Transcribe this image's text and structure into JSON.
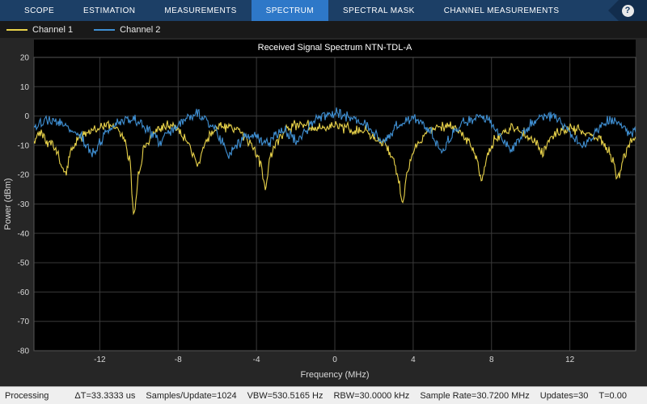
{
  "colors": {
    "tabbar-bg": "#1c3f66",
    "tab-active-bg": "#2e78c8",
    "help-bg": "#122d4d",
    "legend-bg": "#191919",
    "body-bg": "#262626",
    "axes-bg": "#000000",
    "grid": "#3a3a3a",
    "axes-border": "#555555",
    "tick-text": "#d9d9d9",
    "title-text": "#ffffff",
    "status-bg": "#efefef",
    "status-text": "#222222",
    "channel1": "#e8d24a",
    "channel2": "#3f8fd2"
  },
  "tabs": [
    {
      "label": "SCOPE",
      "active": false
    },
    {
      "label": "ESTIMATION",
      "active": false
    },
    {
      "label": "MEASUREMENTS",
      "active": false
    },
    {
      "label": "SPECTRUM",
      "active": true
    },
    {
      "label": "SPECTRAL MASK",
      "active": false
    },
    {
      "label": "CHANNEL MEASUREMENTS",
      "active": false
    }
  ],
  "help_label": "?",
  "legend": [
    {
      "label": "Channel 1",
      "color": "#e8d24a"
    },
    {
      "label": "Channel 2",
      "color": "#3f8fd2"
    }
  ],
  "status": {
    "state": "Processing",
    "metrics": [
      "ΔT=33.3333 us",
      "Samples/Update=1024",
      "VBW=530.5165 Hz",
      "RBW=30.0000 kHz",
      "Sample Rate=30.7200 MHz",
      "Updates=30",
      "T=0.00"
    ]
  },
  "chart_data": {
    "type": "line",
    "title": "Received Signal Spectrum NTN-TDL-A",
    "xlabel": "Frequency (MHz)",
    "ylabel": "Power (dBm)",
    "xlim": [
      -15.36,
      15.36
    ],
    "ylim": [
      -80,
      20
    ],
    "xticks": [
      -12,
      -8,
      -4,
      0,
      4,
      8,
      12
    ],
    "yticks": [
      20,
      10,
      0,
      -10,
      -20,
      -30,
      -40,
      -50,
      -60,
      -70,
      -80
    ],
    "grid": true,
    "legend_position": "top-left",
    "noise_db": 1.3,
    "series": [
      {
        "name": "Channel 1",
        "color": "#e8d24a",
        "points": [
          [
            -15.36,
            -8
          ],
          [
            -15.0,
            -6
          ],
          [
            -14.6,
            -9
          ],
          [
            -14.2,
            -12
          ],
          [
            -13.8,
            -20
          ],
          [
            -13.4,
            -11
          ],
          [
            -13.0,
            -7
          ],
          [
            -12.6,
            -5
          ],
          [
            -12.2,
            -4
          ],
          [
            -11.7,
            -3
          ],
          [
            -11.2,
            -4
          ],
          [
            -10.8,
            -7
          ],
          [
            -10.5,
            -14
          ],
          [
            -10.25,
            -33
          ],
          [
            -10.0,
            -20
          ],
          [
            -9.7,
            -10
          ],
          [
            -9.3,
            -6
          ],
          [
            -8.9,
            -4
          ],
          [
            -8.5,
            -3
          ],
          [
            -8.1,
            -4
          ],
          [
            -7.7,
            -7
          ],
          [
            -7.3,
            -12
          ],
          [
            -7.0,
            -18
          ],
          [
            -6.7,
            -11
          ],
          [
            -6.3,
            -6
          ],
          [
            -5.9,
            -4
          ],
          [
            -5.4,
            -4
          ],
          [
            -5.0,
            -5
          ],
          [
            -4.6,
            -7
          ],
          [
            -4.2,
            -10
          ],
          [
            -3.8,
            -16
          ],
          [
            -3.55,
            -24
          ],
          [
            -3.3,
            -14
          ],
          [
            -2.9,
            -8
          ],
          [
            -2.5,
            -5
          ],
          [
            -2.0,
            -3
          ],
          [
            -1.5,
            -3
          ],
          [
            -1.0,
            -4
          ],
          [
            -0.5,
            -4
          ],
          [
            0.0,
            -3
          ],
          [
            0.5,
            -4
          ],
          [
            1.0,
            -5
          ],
          [
            1.5,
            -5
          ],
          [
            2.0,
            -7
          ],
          [
            2.5,
            -9
          ],
          [
            2.9,
            -13
          ],
          [
            3.2,
            -20
          ],
          [
            3.45,
            -30
          ],
          [
            3.7,
            -19
          ],
          [
            4.0,
            -12
          ],
          [
            4.4,
            -8
          ],
          [
            4.8,
            -5
          ],
          [
            5.3,
            -4
          ],
          [
            5.8,
            -3
          ],
          [
            6.3,
            -5
          ],
          [
            6.8,
            -8
          ],
          [
            7.2,
            -13
          ],
          [
            7.5,
            -21
          ],
          [
            7.8,
            -13
          ],
          [
            8.2,
            -8
          ],
          [
            8.7,
            -5
          ],
          [
            9.2,
            -4
          ],
          [
            9.7,
            -6
          ],
          [
            10.2,
            -9
          ],
          [
            10.6,
            -12
          ],
          [
            11.0,
            -8
          ],
          [
            11.5,
            -5
          ],
          [
            12.0,
            -4
          ],
          [
            12.5,
            -5
          ],
          [
            13.0,
            -6
          ],
          [
            13.5,
            -8
          ],
          [
            14.0,
            -12
          ],
          [
            14.45,
            -21
          ],
          [
            14.8,
            -13
          ],
          [
            15.1,
            -9
          ],
          [
            15.36,
            -7
          ]
        ]
      },
      {
        "name": "Channel 2",
        "color": "#3f8fd2",
        "points": [
          [
            -15.36,
            -4
          ],
          [
            -15.0,
            -2
          ],
          [
            -14.6,
            -1
          ],
          [
            -14.2,
            -2
          ],
          [
            -13.8,
            -3
          ],
          [
            -13.4,
            -5
          ],
          [
            -13.0,
            -7
          ],
          [
            -12.6,
            -11
          ],
          [
            -12.3,
            -13
          ],
          [
            -12.0,
            -9
          ],
          [
            -11.6,
            -5
          ],
          [
            -11.2,
            -3
          ],
          [
            -10.8,
            -1
          ],
          [
            -10.4,
            -1
          ],
          [
            -10.0,
            -2
          ],
          [
            -9.6,
            -4
          ],
          [
            -9.2,
            -7
          ],
          [
            -8.9,
            -9
          ],
          [
            -8.6,
            -6
          ],
          [
            -8.2,
            -4
          ],
          [
            -7.8,
            -2
          ],
          [
            -7.4,
            0
          ],
          [
            -7.0,
            1
          ],
          [
            -6.6,
            -1
          ],
          [
            -6.2,
            -4
          ],
          [
            -5.8,
            -8
          ],
          [
            -5.4,
            -13
          ],
          [
            -5.0,
            -10
          ],
          [
            -4.6,
            -7
          ],
          [
            -4.2,
            -6
          ],
          [
            -3.8,
            -8
          ],
          [
            -3.4,
            -9
          ],
          [
            -3.0,
            -6
          ],
          [
            -2.6,
            -5
          ],
          [
            -2.2,
            -7
          ],
          [
            -1.9,
            -9
          ],
          [
            -1.5,
            -5
          ],
          [
            -1.1,
            -2
          ],
          [
            -0.7,
            0
          ],
          [
            -0.3,
            1
          ],
          [
            0.1,
            1
          ],
          [
            0.5,
            0
          ],
          [
            1.0,
            -1
          ],
          [
            1.5,
            -3
          ],
          [
            2.0,
            -6
          ],
          [
            2.4,
            -9
          ],
          [
            2.8,
            -6
          ],
          [
            3.2,
            -3
          ],
          [
            3.6,
            -1
          ],
          [
            4.0,
            -1
          ],
          [
            4.4,
            -2
          ],
          [
            4.8,
            -5
          ],
          [
            5.2,
            -9
          ],
          [
            5.5,
            -12
          ],
          [
            5.8,
            -8
          ],
          [
            6.2,
            -5
          ],
          [
            6.6,
            -2
          ],
          [
            7.0,
            -1
          ],
          [
            7.4,
            0
          ],
          [
            7.8,
            -1
          ],
          [
            8.2,
            -4
          ],
          [
            8.6,
            -8
          ],
          [
            9.0,
            -12
          ],
          [
            9.3,
            -9
          ],
          [
            9.7,
            -5
          ],
          [
            10.1,
            -2
          ],
          [
            10.5,
            -1
          ],
          [
            11.0,
            0
          ],
          [
            11.4,
            -1
          ],
          [
            11.8,
            -4
          ],
          [
            12.2,
            -7
          ],
          [
            12.6,
            -10
          ],
          [
            13.0,
            -8
          ],
          [
            13.4,
            -5
          ],
          [
            13.8,
            -2
          ],
          [
            14.2,
            -1
          ],
          [
            14.6,
            -3
          ],
          [
            15.0,
            -6
          ],
          [
            15.36,
            -5
          ]
        ]
      }
    ]
  }
}
